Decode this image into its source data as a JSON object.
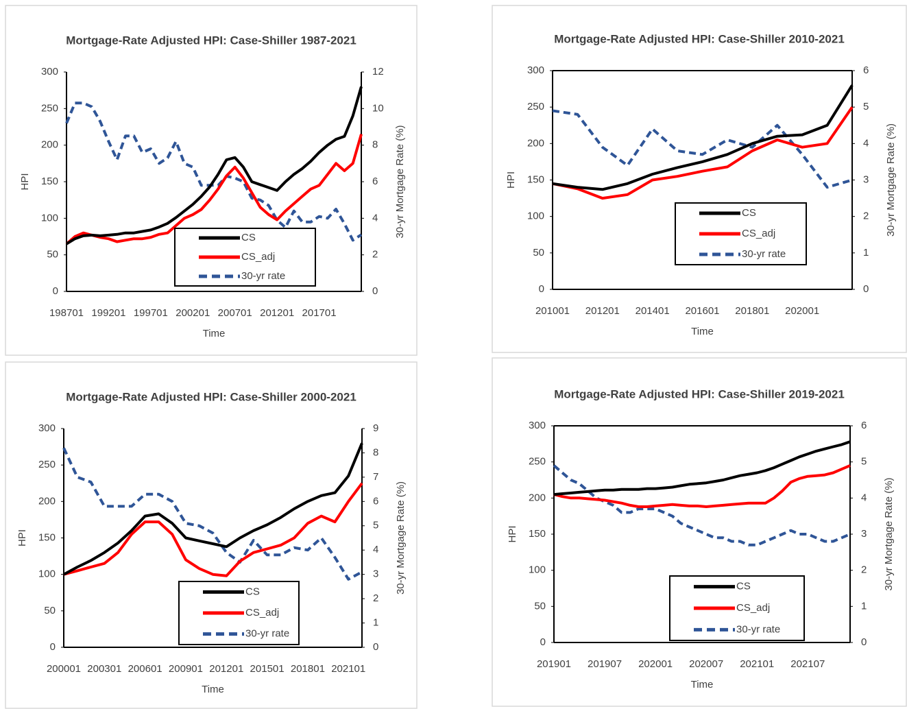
{
  "chart_data": [
    {
      "type": "line",
      "title": "Mortgage-Rate Adjusted HPI: Case-Shiller 1987-2021",
      "xlabel": "Time",
      "ylabel": "HPI",
      "y2label": "30-yr Mortgage Rate (%)",
      "categories": [
        "198701",
        null,
        null,
        null,
        null,
        "199201",
        null,
        null,
        null,
        null,
        "199701",
        null,
        null,
        null,
        null,
        "200201",
        null,
        null,
        null,
        null,
        "200701",
        null,
        null,
        null,
        null,
        "201201",
        null,
        null,
        null,
        null,
        "201701",
        null,
        null,
        null,
        null,
        null
      ],
      "ylim": [
        0,
        300
      ],
      "yticks": [
        0,
        50,
        100,
        150,
        200,
        250,
        300
      ],
      "y2lim": [
        0,
        12
      ],
      "y2ticks": [
        0,
        2,
        4,
        6,
        8,
        10,
        12
      ],
      "series": [
        {
          "name": "CS",
          "color": "#000000",
          "values": [
            65,
            72,
            76,
            77,
            76,
            77,
            78,
            80,
            80,
            82,
            84,
            88,
            93,
            101,
            110,
            119,
            130,
            143,
            160,
            180,
            183,
            170,
            150,
            146,
            142,
            138,
            150,
            160,
            168,
            178,
            190,
            200,
            208,
            212,
            240,
            280
          ]
        },
        {
          "name": "CS_adj",
          "color": "#ff0000",
          "values": [
            65,
            75,
            80,
            77,
            74,
            72,
            68,
            70,
            72,
            72,
            74,
            78,
            80,
            90,
            100,
            105,
            112,
            125,
            140,
            158,
            170,
            155,
            135,
            115,
            105,
            98,
            110,
            120,
            130,
            140,
            145,
            160,
            175,
            165,
            175,
            215
          ]
        },
        {
          "name": "30-yr rate",
          "color": "#2f5597",
          "line_style": "dashed",
          "axis": "y2",
          "values": [
            9.2,
            10.3,
            10.3,
            10.1,
            9.3,
            8.2,
            7.2,
            8.5,
            8.5,
            7.6,
            7.8,
            7.0,
            7.3,
            8.2,
            7.0,
            6.8,
            5.8,
            5.8,
            5.8,
            6.3,
            6.2,
            6.0,
            5.1,
            5.0,
            4.7,
            3.9,
            3.5,
            4.4,
            3.8,
            3.8,
            4.1,
            4.0,
            4.5,
            3.7,
            2.8,
            3.1
          ]
        }
      ]
    },
    {
      "type": "line",
      "title": "Mortgage-Rate Adjusted HPI: Case-Shiller 2010-2021",
      "xlabel": "Time",
      "ylabel": "HPI",
      "y2label": "30-yr Mortgage Rate (%)",
      "categories": [
        "201001",
        null,
        "201201",
        null,
        "201401",
        null,
        "201601",
        null,
        "201801",
        null,
        "202001",
        null,
        null
      ],
      "ylim": [
        0,
        300
      ],
      "yticks": [
        0,
        50,
        100,
        150,
        200,
        250,
        300
      ],
      "y2lim": [
        0,
        6
      ],
      "y2ticks": [
        0,
        1,
        2,
        3,
        4,
        5,
        6
      ],
      "series": [
        {
          "name": "CS",
          "color": "#000000",
          "values": [
            145,
            140,
            137,
            145,
            158,
            167,
            175,
            185,
            200,
            210,
            212,
            225,
            280
          ]
        },
        {
          "name": "CS_adj",
          "color": "#ff0000",
          "values": [
            145,
            138,
            125,
            130,
            150,
            155,
            162,
            168,
            190,
            205,
            195,
            200,
            250
          ]
        },
        {
          "name": "30-yr rate",
          "color": "#2f5597",
          "line_style": "dashed",
          "axis": "y2",
          "values": [
            4.9,
            4.8,
            3.9,
            3.4,
            4.4,
            3.8,
            3.7,
            4.1,
            3.9,
            4.5,
            3.7,
            2.8,
            3.0
          ]
        }
      ]
    },
    {
      "type": "line",
      "title": "Mortgage-Rate Adjusted HPI: Case-Shiller 2000-2021",
      "xlabel": "Time",
      "ylabel": "HPI",
      "y2label": "30-yr Mortgage Rate (%)",
      "categories": [
        "200001",
        null,
        null,
        "200301",
        null,
        null,
        "200601",
        null,
        null,
        "200901",
        null,
        null,
        "201201",
        null,
        null,
        "201501",
        null,
        null,
        "201801",
        null,
        null,
        "202101",
        null
      ],
      "ylim": [
        0,
        300
      ],
      "yticks": [
        0,
        50,
        100,
        150,
        200,
        250,
        300
      ],
      "y2lim": [
        0,
        9
      ],
      "y2ticks": [
        0,
        1,
        2,
        3,
        4,
        5,
        6,
        7,
        8,
        9
      ],
      "series": [
        {
          "name": "CS",
          "color": "#000000",
          "values": [
            100,
            110,
            119,
            130,
            143,
            160,
            180,
            183,
            170,
            150,
            146,
            142,
            138,
            150,
            160,
            168,
            178,
            190,
            200,
            208,
            212,
            235,
            280
          ]
        },
        {
          "name": "CS_adj",
          "color": "#ff0000",
          "values": [
            100,
            105,
            110,
            115,
            130,
            155,
            172,
            172,
            155,
            120,
            108,
            100,
            98,
            118,
            130,
            135,
            140,
            150,
            170,
            180,
            172,
            200,
            225
          ]
        },
        {
          "name": "30-yr rate",
          "color": "#2f5597",
          "line_style": "dashed",
          "axis": "y2",
          "values": [
            8.2,
            7.0,
            6.8,
            5.8,
            5.8,
            5.8,
            6.3,
            6.3,
            6.0,
            5.1,
            5.0,
            4.7,
            3.9,
            3.5,
            4.4,
            3.8,
            3.8,
            4.1,
            4.0,
            4.5,
            3.7,
            2.8,
            3.1
          ]
        }
      ]
    },
    {
      "type": "line",
      "title": "Mortgage-Rate Adjusted HPI: Case-Shiller 2019-2021",
      "xlabel": "Time",
      "ylabel": "HPI",
      "y2label": "30-yr Mortgage Rate (%)",
      "categories": [
        "201901",
        null,
        null,
        null,
        null,
        null,
        "201907",
        null,
        null,
        null,
        null,
        null,
        "202001",
        null,
        null,
        null,
        null,
        null,
        "202007",
        null,
        null,
        null,
        null,
        null,
        "202101",
        null,
        null,
        null,
        null,
        null,
        "202107",
        null,
        null,
        null,
        null,
        null
      ],
      "ylim": [
        0,
        300
      ],
      "yticks": [
        0,
        50,
        100,
        150,
        200,
        250,
        300
      ],
      "y2lim": [
        0,
        6
      ],
      "y2ticks": [
        0,
        1,
        2,
        3,
        4,
        5,
        6
      ],
      "series": [
        {
          "name": "CS",
          "color": "#000000",
          "values": [
            205,
            206,
            207,
            208,
            209,
            210,
            211,
            211,
            212,
            212,
            212,
            213,
            213,
            214,
            215,
            217,
            219,
            220,
            221,
            223,
            225,
            228,
            231,
            233,
            235,
            238,
            242,
            247,
            252,
            257,
            261,
            265,
            268,
            271,
            274,
            278
          ]
        },
        {
          "name": "CS_adj",
          "color": "#ff0000",
          "values": [
            205,
            202,
            200,
            200,
            199,
            198,
            197,
            195,
            193,
            190,
            188,
            188,
            189,
            190,
            191,
            190,
            189,
            189,
            188,
            189,
            190,
            191,
            192,
            193,
            193,
            193,
            200,
            210,
            222,
            227,
            230,
            231,
            232,
            235,
            240,
            245
          ]
        },
        {
          "name": "30-yr rate",
          "color": "#2f5597",
          "line_style": "dashed",
          "axis": "y2",
          "values": [
            4.9,
            4.7,
            4.5,
            4.4,
            4.2,
            4.0,
            3.9,
            3.8,
            3.6,
            3.6,
            3.7,
            3.7,
            3.7,
            3.6,
            3.5,
            3.3,
            3.2,
            3.1,
            3.0,
            2.9,
            2.9,
            2.8,
            2.8,
            2.7,
            2.7,
            2.8,
            2.9,
            3.0,
            3.1,
            3.0,
            3.0,
            2.9,
            2.8,
            2.8,
            2.9,
            3.0
          ]
        }
      ]
    }
  ]
}
